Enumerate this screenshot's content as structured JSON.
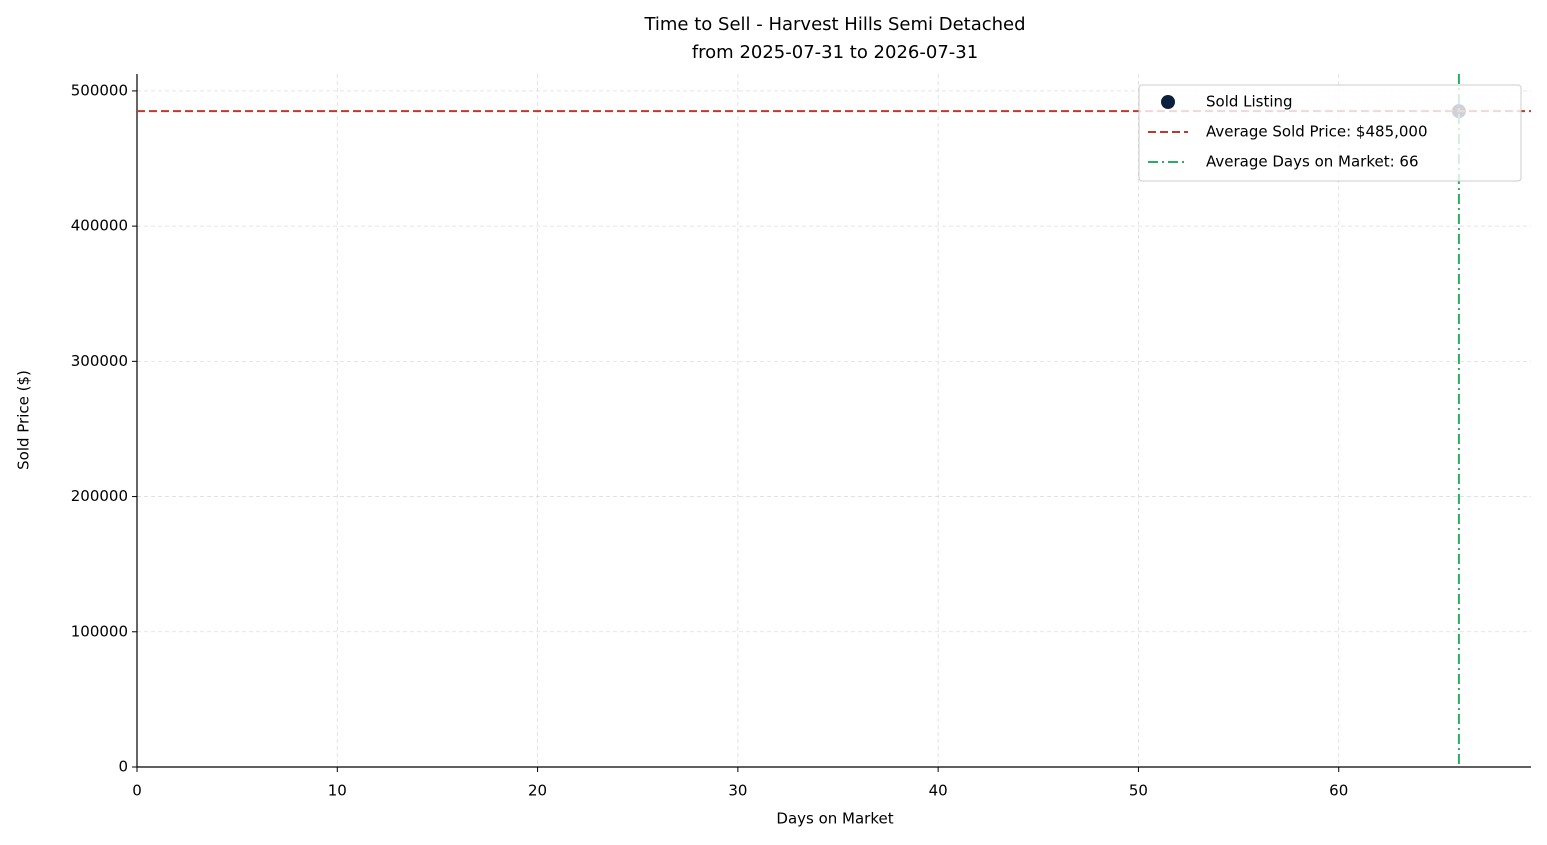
{
  "chart_data": {
    "type": "scatter",
    "title": "Time to Sell - Harvest Hills Semi Detached",
    "subtitle": "from 2025-07-31 to 2026-07-31",
    "x_label": "Days on Market",
    "y_label": "Sold Price ($)",
    "series": [
      {
        "name": "Sold Listing",
        "color": "#0b1f3f",
        "x": [
          66
        ],
        "values": [
          485000
        ]
      }
    ],
    "hlines": [
      {
        "name": "Average Sold Price: $485,000",
        "value": 485000,
        "color": "#c0392b"
      }
    ],
    "vlines": [
      {
        "name": "Average Days on Market: 66",
        "value": 66,
        "color": "#27ae60"
      }
    ],
    "xlim": [
      0,
      69.6
    ],
    "xticks": [
      0,
      10,
      20,
      30,
      40,
      50,
      60
    ],
    "ylim": [
      0,
      512500
    ],
    "yticks": [
      0,
      100000,
      200000,
      300000,
      400000,
      500000
    ],
    "grid": true,
    "legend": "upper-right"
  }
}
